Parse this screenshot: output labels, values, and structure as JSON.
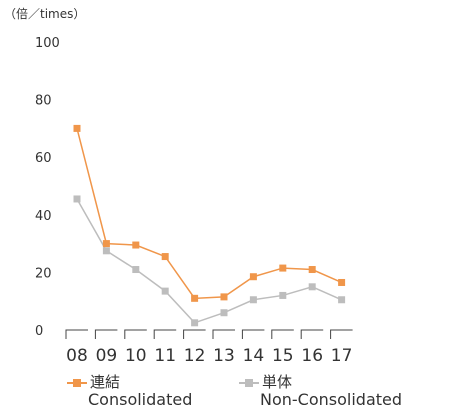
{
  "chart_data": {
    "type": "line",
    "unit_label": "（倍／times）",
    "categories": [
      "08",
      "09",
      "10",
      "11",
      "12",
      "13",
      "14",
      "15",
      "16",
      "17"
    ],
    "ylim": [
      0,
      100
    ],
    "yticks": [
      0,
      20,
      40,
      60,
      80,
      100
    ],
    "legend_position": "bottom",
    "series": [
      {
        "name": "連結",
        "name_en": "Consolidated",
        "color": "#F0964A",
        "marker": "square",
        "values": [
          70,
          30,
          29.5,
          25.5,
          11,
          11.5,
          18.5,
          21.5,
          21,
          16.5
        ]
      },
      {
        "name": "単体",
        "name_en": "Non-Consolidated",
        "color": "#BDBDBD",
        "marker": "square",
        "values": [
          45.5,
          27.5,
          21,
          13.5,
          2.5,
          6,
          10.5,
          12,
          15,
          10.5
        ]
      }
    ]
  }
}
